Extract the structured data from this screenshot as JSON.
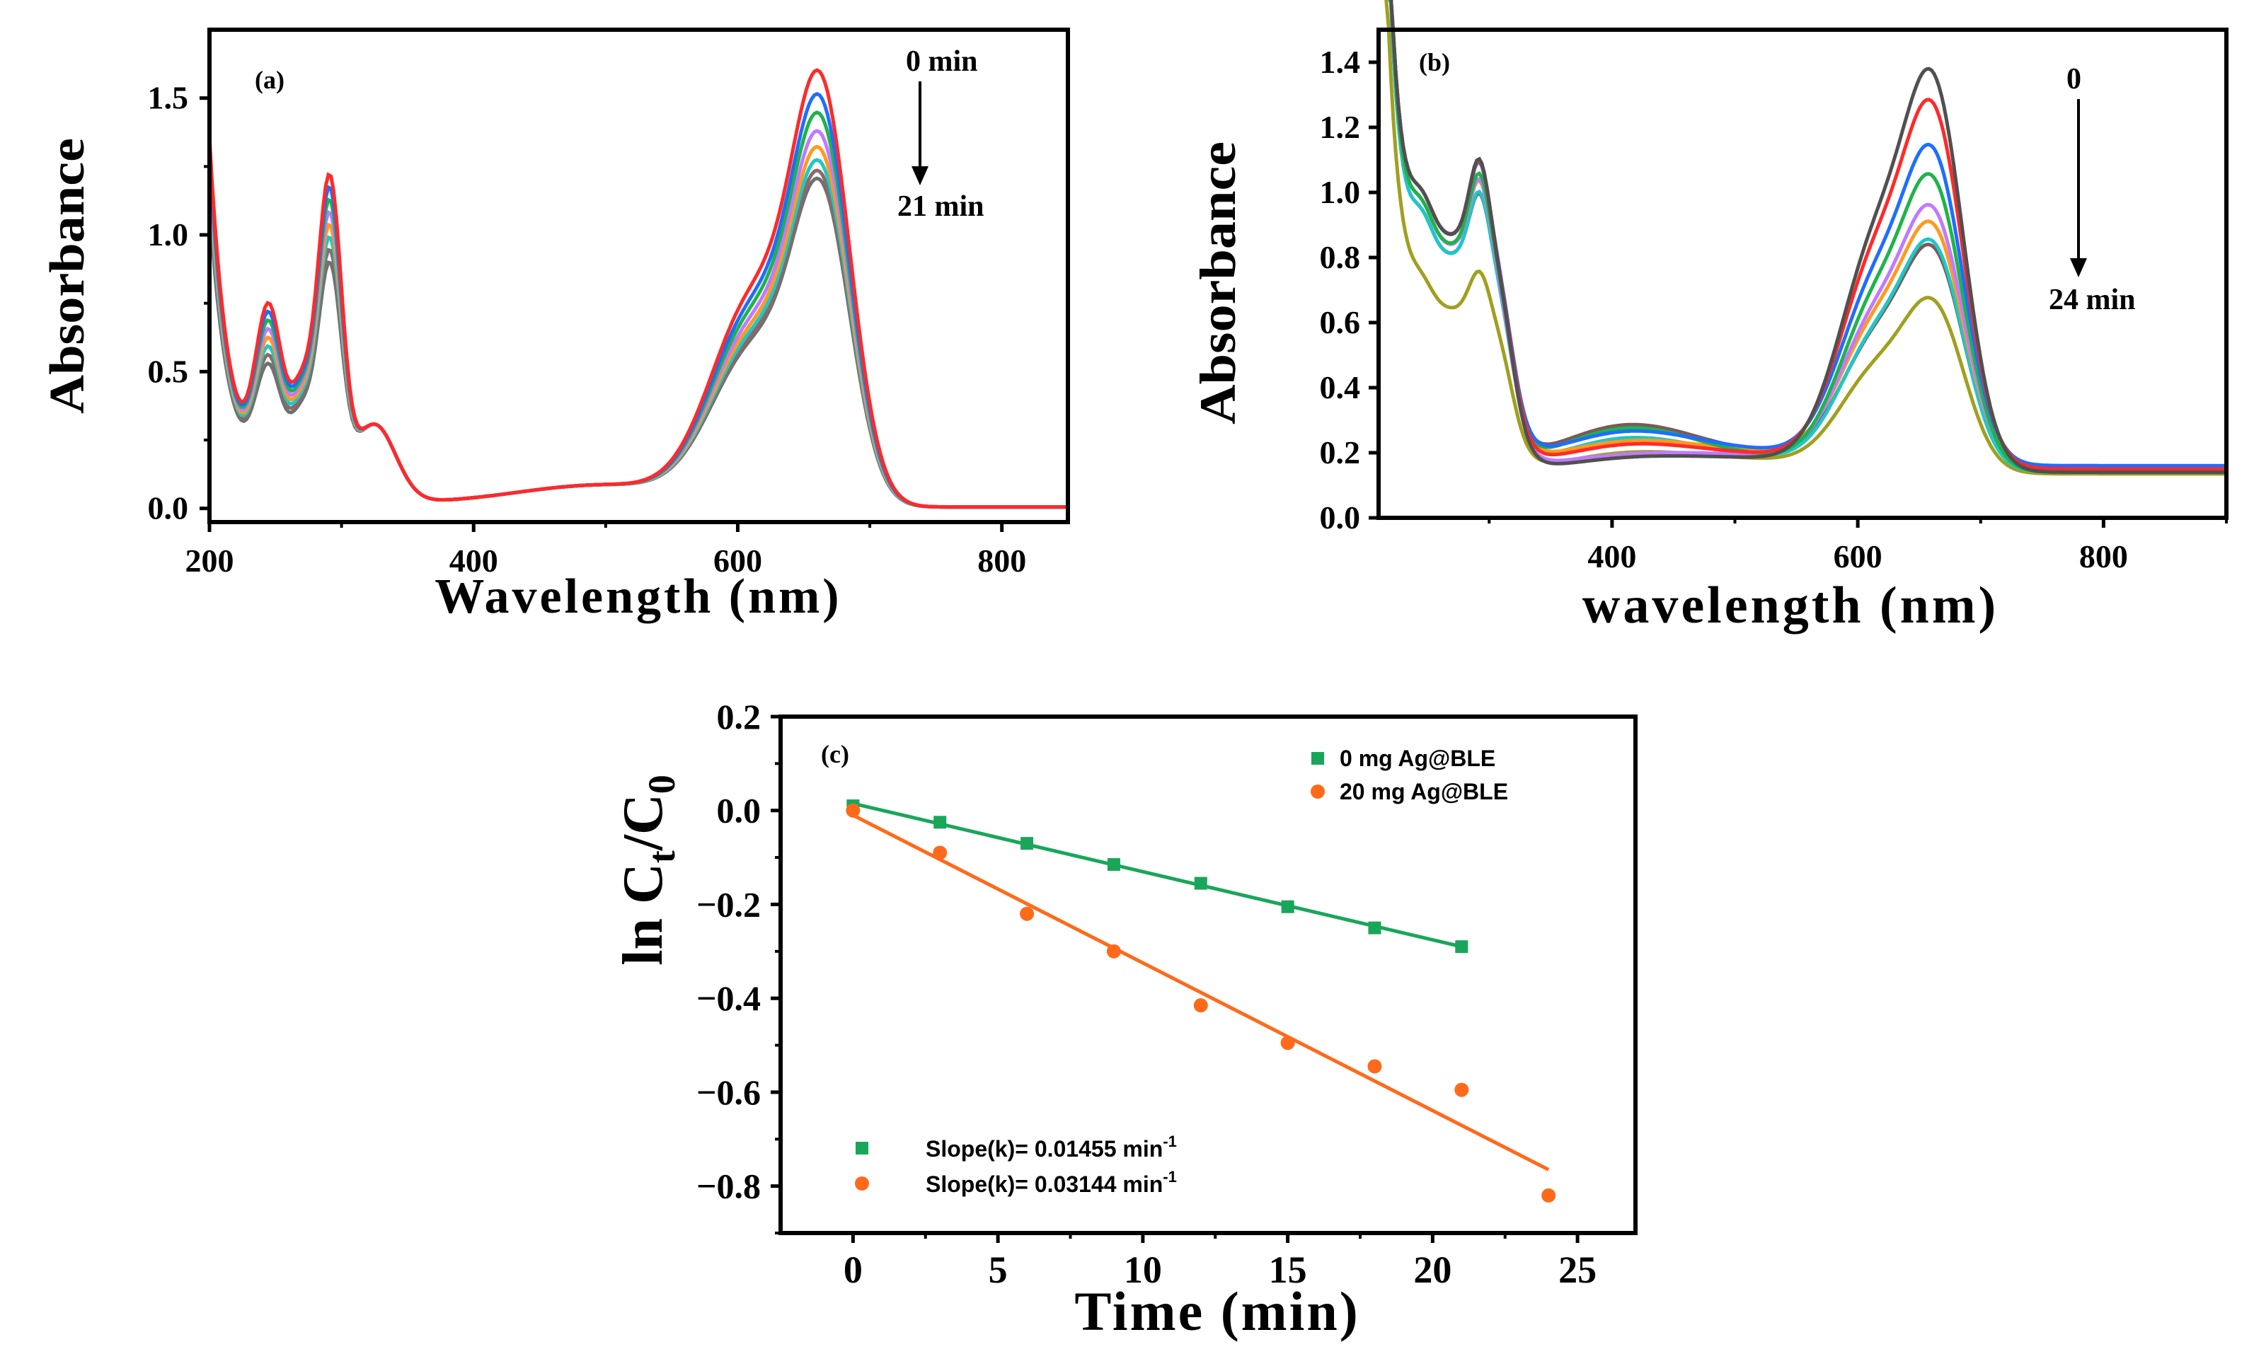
{
  "chart_data": [
    {
      "panel": "(a)",
      "type": "line",
      "xlabel": "Wavelength (nm)",
      "ylabel": "Absorbance",
      "xlim": [
        200,
        850
      ],
      "ylim": [
        -0.05,
        1.75
      ],
      "xticks": [
        "200",
        "400",
        "600",
        "800"
      ],
      "yticks": [
        "0.0",
        "0.5",
        "1.0",
        "1.5"
      ],
      "annotation_top": "0 min",
      "annotation_bottom": "21 min",
      "series_colors": [
        "#ff2a2a",
        "#1e6eff",
        "#1fb34b",
        "#c07aff",
        "#ff9a1f",
        "#1fc7c7",
        "#8a6a6a",
        "#707070"
      ],
      "peak_values": [
        1.65,
        1.56,
        1.49,
        1.42,
        1.36,
        1.31,
        1.27,
        1.24
      ]
    },
    {
      "panel": "(b)",
      "type": "line",
      "xlabel": "wavelength (nm)",
      "ylabel": "Absorbance",
      "xlim": [
        210,
        900
      ],
      "ylim": [
        0.0,
        1.5
      ],
      "xticks": [
        "400",
        "600",
        "800"
      ],
      "yticks": [
        "0.0",
        "0.2",
        "0.4",
        "0.6",
        "0.8",
        "1.0",
        "1.2",
        "1.4"
      ],
      "annotation_top": "0",
      "annotation_bottom": "24 min",
      "series_colors": [
        "#505050",
        "#ff2a2a",
        "#1e6eff",
        "#1fb34b",
        "#c07aff",
        "#ff9a1f",
        "#1fc7c7",
        "#7a5a5a",
        "#a0a020"
      ],
      "peak_values": [
        1.41,
        1.29,
        1.12,
        1.04,
        0.92,
        0.85,
        0.81,
        0.78,
        0.61
      ]
    },
    {
      "panel": "(c)",
      "type": "scatter",
      "xlabel": "Time (min)",
      "ylabel_main": "ln C",
      "ylabel_sub1": "t",
      "ylabel_slash": "/C",
      "ylabel_sub2": "0",
      "xlim": [
        -2.5,
        27
      ],
      "ylim": [
        -0.9,
        0.2
      ],
      "xticks": [
        "0",
        "5",
        "10",
        "15",
        "20",
        "25"
      ],
      "yticks": [
        "0.2",
        "0.0",
        "−0.2",
        "−0.4",
        "−0.6",
        "−0.8"
      ],
      "legend": [
        "0 mg Ag@BLE",
        "20 mg Ag@BLE"
      ],
      "fit_labels": [
        {
          "text": "Slope(k)= 0.01455 min",
          "sup": "-1"
        },
        {
          "text": "Slope(k)= 0.03144 min",
          "sup": "-1"
        }
      ],
      "series": [
        {
          "name": "0 mg Ag@BLE",
          "color": "#1aa65a",
          "marker": "square",
          "x": [
            0,
            3,
            6,
            9,
            12,
            15,
            18,
            21
          ],
          "y": [
            0.01,
            -0.025,
            -0.07,
            -0.115,
            -0.155,
            -0.205,
            -0.25,
            -0.29
          ],
          "fit": {
            "x": [
              0,
              21
            ],
            "y": [
              0.015,
              -0.29
            ]
          }
        },
        {
          "name": "20 mg Ag@BLE",
          "color": "#ff6a1a",
          "marker": "circle",
          "x": [
            0,
            3,
            6,
            9,
            12,
            15,
            18,
            21,
            24
          ],
          "y": [
            0.0,
            -0.09,
            -0.22,
            -0.3,
            -0.415,
            -0.495,
            -0.545,
            -0.595,
            -0.82
          ],
          "fit": {
            "x": [
              0,
              24
            ],
            "y": [
              -0.01,
              -0.765
            ]
          }
        }
      ]
    }
  ]
}
